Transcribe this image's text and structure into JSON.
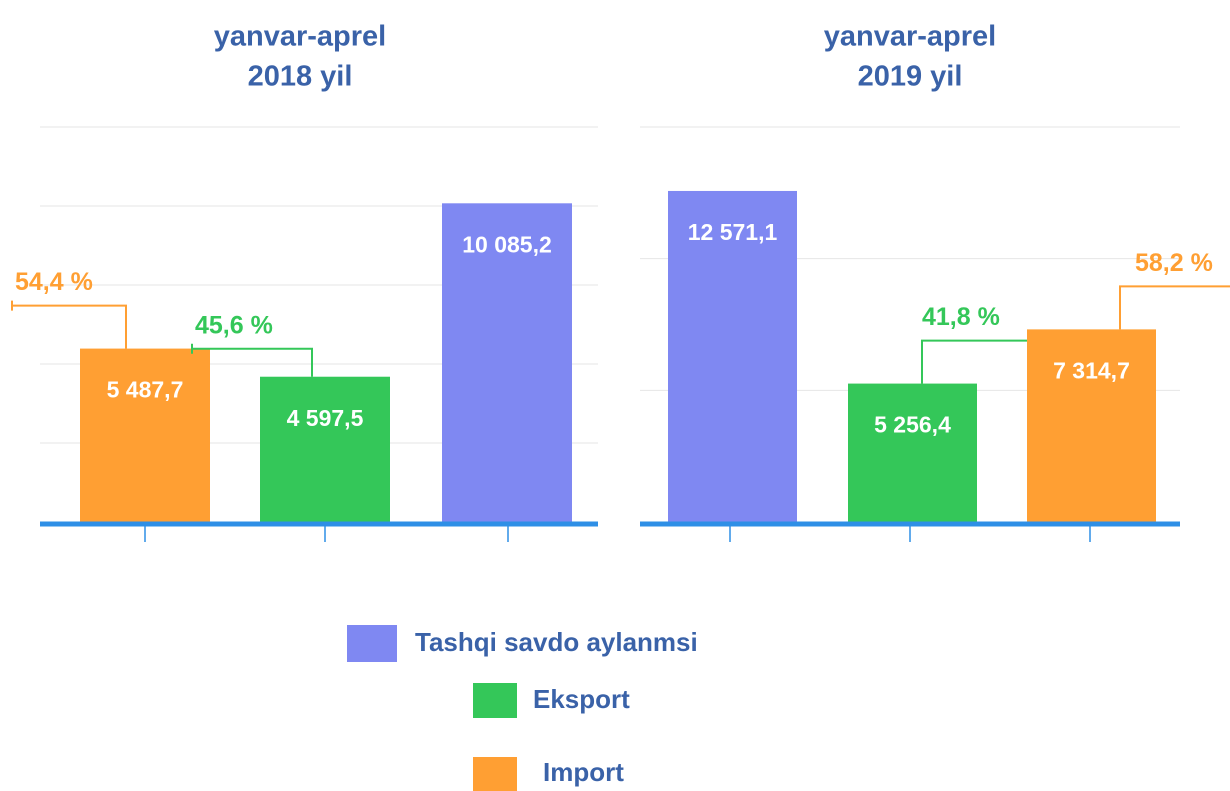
{
  "chart_data": [
    {
      "type": "bar",
      "title": "yanvar-aprel",
      "subtitle": "2018 yil",
      "values": [
        5487.7,
        4597.5,
        10085.2
      ],
      "value_labels": [
        "5 487,7",
        "4 597,5",
        "10 085,2"
      ],
      "colors": [
        "#ff9f33",
        "#34c759",
        "#7f88f2"
      ],
      "shares": [
        "54,4 %",
        "45,6 %",
        null
      ],
      "ylim": [
        0,
        12500
      ],
      "yticks": [
        0,
        2500,
        5000,
        7500,
        10000,
        12500
      ],
      "grid": true
    },
    {
      "type": "bar",
      "title": "yanvar-aprel",
      "subtitle": "2019 yil",
      "values": [
        12571.1,
        5256.4,
        7314.7
      ],
      "value_labels": [
        "12 571,1",
        "5 256,4",
        "7 314,7"
      ],
      "colors": [
        "#7f88f2",
        "#34c759",
        "#ff9f33"
      ],
      "shares": [
        null,
        "41,8 %",
        "58,2 %"
      ],
      "ylim": [
        0,
        15000
      ],
      "yticks": [
        0,
        5000,
        10000,
        15000
      ],
      "grid": true
    }
  ],
  "legend": [
    {
      "name": "Tashqi savdo aylanmsi",
      "color": "#7f88f2"
    },
    {
      "name": "Eksport",
      "color": "#34c759"
    },
    {
      "name": "Import",
      "color": "#ff9f33"
    }
  ]
}
